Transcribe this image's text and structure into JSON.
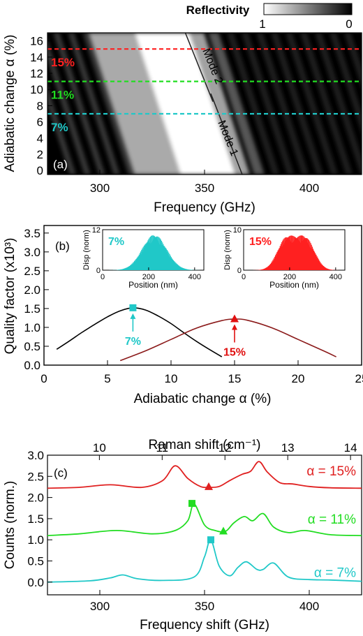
{
  "chart_data": [
    {
      "panel": "(a)",
      "type": "heatmap",
      "colorbar": {
        "title": "Reflectivity",
        "min_label": "1",
        "max_label": "0"
      },
      "xlabel": "Frequency (GHz)",
      "ylabel": "Adiabatic change α (%)",
      "xlim": [
        275,
        425
      ],
      "ylim": [
        -0.5,
        17
      ],
      "xticks": [
        300,
        350,
        400
      ],
      "yticks": [
        0,
        2,
        4,
        6,
        8,
        10,
        12,
        14,
        16
      ],
      "dashed_lines": [
        {
          "y": 15,
          "label": "15%",
          "color": "#ff2020"
        },
        {
          "y": 11,
          "label": "11%",
          "color": "#22dd22"
        },
        {
          "y": 7,
          "label": "7%",
          "color": "#20c8c8"
        }
      ],
      "mode_labels": [
        "Mode 2",
        "Mode 1"
      ]
    },
    {
      "panel": "(b)",
      "type": "line",
      "xlabel": "Adiabatic change α (%)",
      "ylabel": "Quality factor (x10³)",
      "xlim": [
        0,
        25
      ],
      "ylim": [
        0,
        3.7
      ],
      "xticks": [
        0,
        5,
        10,
        15,
        20,
        25
      ],
      "yticks": [
        0.0,
        0.5,
        1.0,
        1.5,
        2.0,
        2.5,
        3.0,
        3.5
      ],
      "ytick_labels": [
        "0.0",
        "0.5",
        "1.0",
        "1.5",
        "2.0",
        "2.5",
        "3.0",
        "3.5"
      ],
      "series": [
        {
          "color": "#000000",
          "x": [
            1,
            2,
            3,
            4,
            5,
            6,
            7,
            8,
            9,
            10,
            11,
            12,
            13,
            14
          ],
          "y": [
            0.42,
            0.64,
            0.87,
            1.08,
            1.28,
            1.44,
            1.52,
            1.46,
            1.3,
            1.1,
            0.86,
            0.63,
            0.42,
            0.22
          ]
        },
        {
          "color": "#8b1a1a",
          "x": [
            6,
            8,
            10,
            12,
            14,
            15,
            16,
            18,
            20,
            22,
            23
          ],
          "y": [
            0.12,
            0.38,
            0.68,
            0.98,
            1.18,
            1.22,
            1.19,
            0.98,
            0.68,
            0.38,
            0.22
          ]
        }
      ],
      "markers": [
        {
          "x": 7,
          "y": 1.52,
          "shape": "square",
          "color": "#20c8c8",
          "label": "7%"
        },
        {
          "x": 15,
          "y": 1.23,
          "shape": "triangle",
          "color": "#e01010",
          "label": "15%"
        }
      ],
      "insets": [
        {
          "label": "7%",
          "color": "#20c8c8",
          "ylabel": "Disp (norm)",
          "xlabel": "Position (nm)",
          "xticks": [
            0,
            200,
            400
          ],
          "yticks": [
            0,
            12
          ],
          "ymax": 12,
          "envelope": "single",
          "peak": 10.5
        },
        {
          "label": "15%",
          "color": "#ff2020",
          "ylabel": "Disp (norm)",
          "xlabel": "Position (nm)",
          "xticks": [
            0,
            200,
            400
          ],
          "yticks": [
            0,
            10
          ],
          "ymax": 10,
          "envelope": "double",
          "peak": 8.5
        }
      ]
    },
    {
      "panel": "(c)",
      "type": "line",
      "xlabel": "Frequency shift (GHz)",
      "ylabel": "Counts (norm.)",
      "top_xlabel": "Raman shift (cm⁻¹)",
      "xlim": [
        275,
        425
      ],
      "ylim": [
        -0.3,
        3.0
      ],
      "xticks": [
        300,
        350,
        400
      ],
      "yticks": [
        0.0,
        0.5,
        1.0,
        1.5,
        2.0,
        2.5,
        3.0
      ],
      "ytick_labels": [
        "0.0",
        "0.5",
        "1.0",
        "1.5",
        "2.0",
        "2.5",
        "3.0"
      ],
      "top_xticks": [
        10,
        11,
        12,
        13,
        14
      ],
      "series": [
        {
          "name": "α = 15%",
          "color": "#e02020",
          "x": [
            275,
            290,
            305,
            320,
            330,
            336,
            342,
            348,
            352,
            357,
            362,
            368,
            372,
            376,
            380,
            386,
            392,
            400,
            410,
            425
          ],
          "y": [
            2.22,
            2.24,
            2.3,
            2.24,
            2.4,
            2.75,
            2.45,
            2.26,
            2.24,
            2.26,
            2.4,
            2.55,
            2.62,
            2.85,
            2.6,
            2.35,
            2.32,
            2.26,
            2.23,
            2.22
          ]
        },
        {
          "name": "α = 11%",
          "color": "#22dd22",
          "x": [
            275,
            290,
            308,
            325,
            336,
            342,
            345,
            350,
            355,
            360,
            364,
            369,
            373,
            378,
            383,
            390,
            398,
            410,
            425
          ],
          "y": [
            1.1,
            1.14,
            1.22,
            1.14,
            1.22,
            1.45,
            1.85,
            1.35,
            1.22,
            1.2,
            1.4,
            1.55,
            1.45,
            1.62,
            1.3,
            1.17,
            1.22,
            1.12,
            1.1
          ]
        },
        {
          "name": "α = 7%",
          "color": "#20c8c8",
          "x": [
            275,
            295,
            305,
            311,
            318,
            330,
            345,
            350,
            353,
            357,
            362,
            366,
            370,
            375,
            378,
            383,
            390,
            400,
            410,
            425
          ],
          "y": [
            0.0,
            0.03,
            0.1,
            0.17,
            0.08,
            0.04,
            0.12,
            0.6,
            1.0,
            0.38,
            0.15,
            0.35,
            0.48,
            0.3,
            0.3,
            0.45,
            0.12,
            0.06,
            0.05,
            0.02
          ]
        }
      ],
      "markers": [
        {
          "x": 353,
          "y": 1.0,
          "shape": "square",
          "color": "#20c8c8"
        },
        {
          "x": 344,
          "y": 1.86,
          "shape": "square",
          "color": "#22dd22"
        },
        {
          "x": 359,
          "y": 1.21,
          "shape": "triangle",
          "color": "#22dd22"
        },
        {
          "x": 352,
          "y": 2.26,
          "shape": "triangle",
          "color": "#e02020"
        }
      ]
    }
  ]
}
